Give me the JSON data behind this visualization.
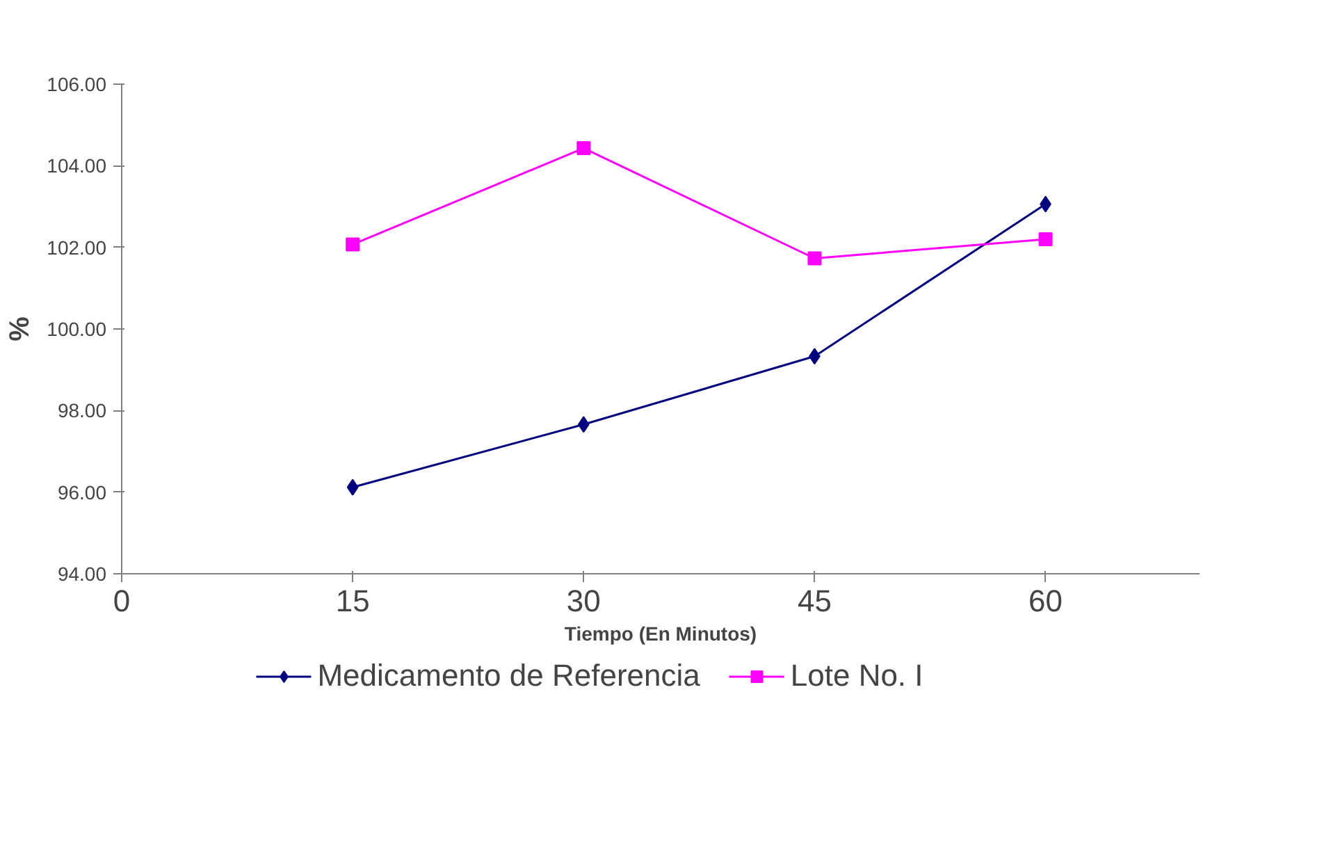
{
  "chart_data": {
    "type": "line",
    "xlabel": "Tiempo (En Minutos)",
    "ylabel": "%",
    "x": [
      15,
      30,
      45,
      60
    ],
    "series": [
      {
        "name": "Medicamento de Referencia",
        "color": "#000080",
        "marker": "diamond",
        "values": [
          96.12,
          97.66,
          99.33,
          103.06
        ]
      },
      {
        "name": "Lote No. I",
        "color": "#ff00ff",
        "marker": "square",
        "values": [
          102.07,
          104.43,
          101.73,
          102.2
        ]
      }
    ],
    "xlim": [
      0,
      70
    ],
    "xticks": [
      0,
      15,
      30,
      45,
      60
    ],
    "ylim": [
      94,
      106
    ],
    "yticks": [
      {
        "value": 94,
        "label": "94.00"
      },
      {
        "value": 96,
        "label": "96.00"
      },
      {
        "value": 98,
        "label": "98.00"
      },
      {
        "value": 100,
        "label": "100.00"
      },
      {
        "value": 102,
        "label": "102.00"
      },
      {
        "value": 104,
        "label": "104.00"
      },
      {
        "value": 106,
        "label": "106.00"
      }
    ],
    "grid": false,
    "legend": "bottom",
    "line_style": "solid"
  }
}
